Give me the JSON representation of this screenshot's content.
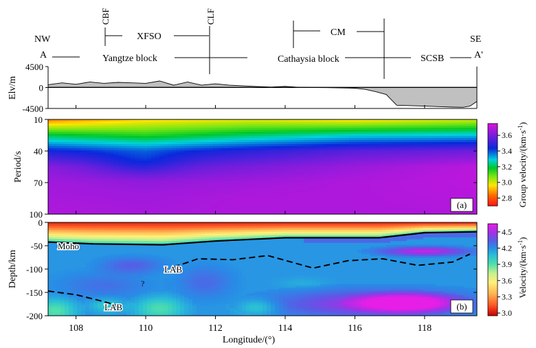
{
  "chart_data": [
    {
      "type": "area",
      "panel": "elevation",
      "ylabel": "Elv/m",
      "yticks": [
        "4500",
        "0",
        "-4500"
      ],
      "ylim": [
        -4500,
        4500
      ],
      "xlim": [
        107.2,
        119.5
      ],
      "points_lon": [
        107.2,
        107.6,
        108.0,
        108.4,
        108.8,
        109.2,
        109.6,
        110.0,
        110.4,
        110.8,
        111.2,
        111.6,
        112.0,
        112.4,
        112.8,
        113.2,
        113.6,
        114.0,
        114.4,
        114.8,
        115.2,
        115.6,
        116.0,
        116.3,
        116.6,
        116.9,
        117.2,
        117.6,
        118.0,
        118.4,
        118.8,
        119.1,
        119.3,
        119.5
      ],
      "points_elev": [
        600,
        1000,
        700,
        1200,
        900,
        1100,
        1000,
        900,
        1400,
        500,
        1200,
        500,
        800,
        500,
        350,
        200,
        100,
        250,
        50,
        0,
        -30,
        -80,
        -150,
        -400,
        -900,
        -1500,
        -3800,
        -3900,
        -4000,
        -4100,
        -4200,
        -4250,
        -4000,
        -3000
      ],
      "labels": {
        "nw": "NW",
        "se": "SE",
        "a": "A",
        "a_prime": "A'",
        "cbf": "CBF",
        "clf": "CLF",
        "xfso": "XFSO",
        "cm": "CM",
        "yangtze": "Yangtze block",
        "cathaysia": "Cathaysia block",
        "scsb": "SCSB"
      }
    },
    {
      "type": "heatmap",
      "panel": "a",
      "panel_label": "(a)",
      "ylabel": "Period/s",
      "yticks": [
        "10",
        "40",
        "70",
        "100"
      ],
      "ylim": [
        100,
        10
      ],
      "colorbar_label": "Group velocity/(km·s",
      "colorbar_unit_exp": "-1",
      "colorbar_close": ")",
      "colorbar_ticks": [
        "3.6",
        "3.4",
        "3.2",
        "3.0",
        "2.8"
      ],
      "colorbar_range": [
        2.7,
        3.75
      ],
      "period_levels": [
        10,
        25,
        40,
        55,
        70,
        85,
        100
      ],
      "velocity_at_lon": [
        {
          "lon": 107.2,
          "v": [
            2.85,
            3.2,
            3.45,
            3.62,
            3.66,
            3.67,
            3.68
          ]
        },
        {
          "lon": 110.0,
          "v": [
            2.95,
            3.15,
            3.4,
            3.55,
            3.64,
            3.66,
            3.67
          ]
        },
        {
          "lon": 113.0,
          "v": [
            2.98,
            3.22,
            3.48,
            3.6,
            3.66,
            3.68,
            3.68
          ]
        },
        {
          "lon": 116.0,
          "v": [
            2.95,
            3.28,
            3.55,
            3.65,
            3.68,
            3.68,
            3.68
          ]
        },
        {
          "lon": 119.5,
          "v": [
            3.0,
            3.3,
            3.58,
            3.7,
            3.7,
            3.69,
            3.68
          ]
        }
      ]
    },
    {
      "type": "heatmap",
      "panel": "b",
      "panel_label": "(b)",
      "xlabel": "Longitude/(°)",
      "ylabel": "Depth/km",
      "xticks": [
        "108",
        "110",
        "112",
        "114",
        "116",
        "118"
      ],
      "xlim": [
        107.2,
        119.5
      ],
      "yticks": [
        "0",
        "-50",
        "-100",
        "-150",
        "-200"
      ],
      "ylim": [
        -200,
        0
      ],
      "colorbar_label": "Velocity/(km·s",
      "colorbar_unit_exp": "-1",
      "colorbar_close": ")",
      "colorbar_ticks": [
        "4.5",
        "4.2",
        "3.9",
        "3.6",
        "3.3",
        "3.0"
      ],
      "colorbar_range": [
        2.95,
        4.65
      ],
      "annotations": [
        "Moho",
        "LAB",
        "LAB",
        "?"
      ],
      "moho_lon": [
        107.2,
        108.5,
        110.5,
        112.0,
        114.0,
        116.7,
        118.0,
        119.5
      ],
      "moho_depth": [
        -42,
        -46,
        -48,
        -40,
        -33,
        -33,
        -22,
        -20
      ],
      "lab_east_lon": [
        110.8,
        111.5,
        112.5,
        113.5,
        114.8,
        115.8,
        116.8,
        117.8,
        118.8,
        119.3
      ],
      "lab_east_depth": [
        -96,
        -78,
        -80,
        -71,
        -98,
        -82,
        -78,
        -92,
        -85,
        -68
      ],
      "lab_west_lon": [
        107.2,
        108.0,
        108.7,
        109.2
      ],
      "lab_west_depth": [
        -147,
        -155,
        -168,
        -178
      ],
      "blobs": [
        {
          "lon": 109.6,
          "depth": -92,
          "rlon": 0.9,
          "rdep": 18,
          "v": 4.33
        },
        {
          "lon": 108.8,
          "depth": -135,
          "rlon": 1.3,
          "rdep": 28,
          "v": 4.28
        },
        {
          "lon": 111.7,
          "depth": -128,
          "rlon": 0.8,
          "rdep": 35,
          "v": 4.3
        },
        {
          "lon": 118.0,
          "depth": -62,
          "rlon": 1.3,
          "rdep": 10,
          "v": 4.55
        },
        {
          "lon": 116.7,
          "depth": -175,
          "rlon": 2.9,
          "rdep": 30,
          "v": 4.5
        },
        {
          "lon": 117.5,
          "depth": -172,
          "rlon": 1.3,
          "rdep": 18,
          "v": 4.62
        },
        {
          "lon": 107.4,
          "depth": -190,
          "rlon": 0.6,
          "rdep": 25,
          "v": 3.9
        },
        {
          "lon": 110.4,
          "depth": -185,
          "rlon": 0.7,
          "rdep": 25,
          "v": 3.92
        },
        {
          "lon": 108.9,
          "depth": -178,
          "rlon": 0.5,
          "rdep": 16,
          "v": 4.02
        },
        {
          "lon": 113.2,
          "depth": -182,
          "rlon": 0.6,
          "rdep": 18,
          "v": 4.0
        },
        {
          "lon": 114.5,
          "depth": -130,
          "rlon": 0.7,
          "rdep": 12,
          "v": 4.12
        }
      ]
    }
  ]
}
